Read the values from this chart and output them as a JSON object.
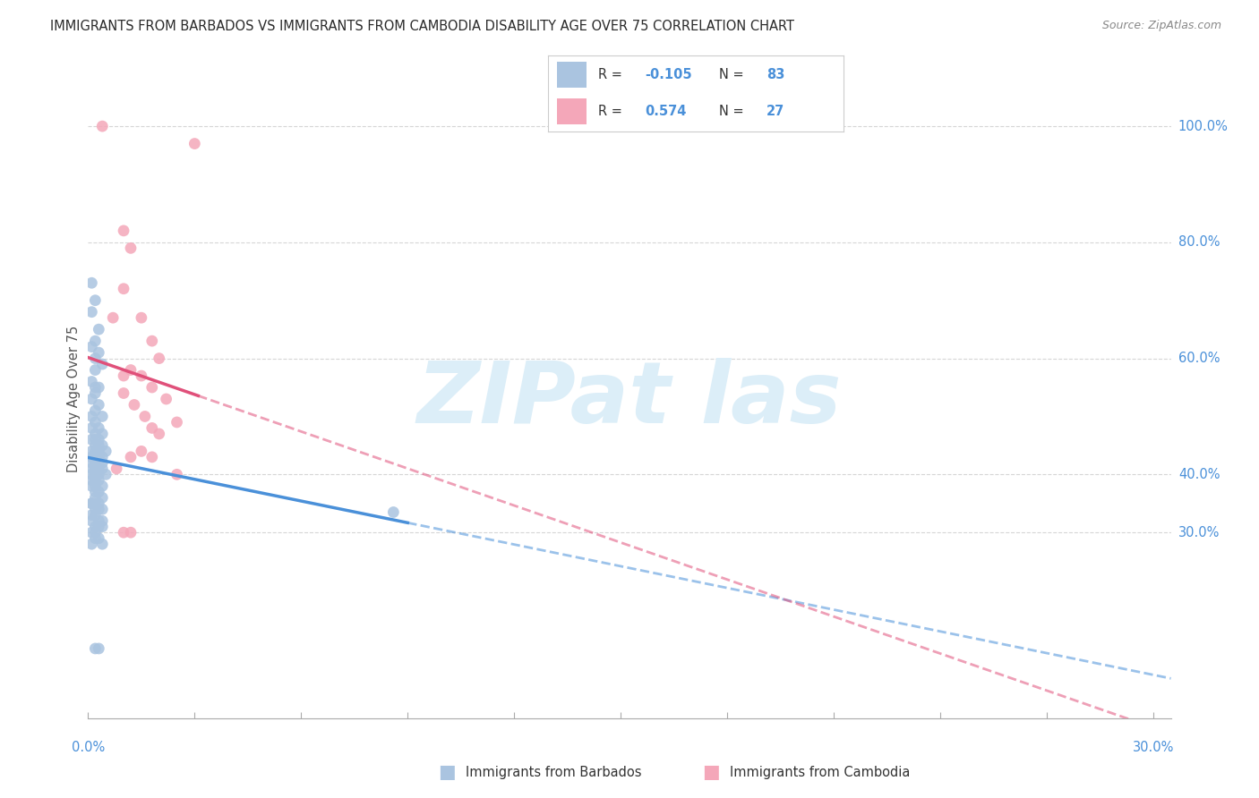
{
  "title": "IMMIGRANTS FROM BARBADOS VS IMMIGRANTS FROM CAMBODIA DISABILITY AGE OVER 75 CORRELATION CHART",
  "source": "Source: ZipAtlas.com",
  "ylabel": "Disability Age Over 75",
  "R1": "-0.105",
  "N1": "83",
  "R2": "0.574",
  "N2": "27",
  "color_barbados": "#aac4e0",
  "color_cambodia": "#f4a7b9",
  "trendline_barbados": "#4a90d9",
  "trendline_cambodia": "#e0507a",
  "background_color": "#ffffff",
  "grid_color": "#cccccc",
  "watermark_color": "#dceef8",
  "title_color": "#2a2a2a",
  "source_color": "#888888",
  "axis_tick_color": "#4a90d9",
  "legend_label1": "Immigrants from Barbados",
  "legend_label2": "Immigrants from Cambodia",
  "xlim": [
    0.0,
    0.305
  ],
  "ylim": [
    -0.02,
    1.08
  ],
  "y_tick_values": [
    1.0,
    0.8,
    0.6,
    0.4,
    0.3
  ],
  "y_tick_labels": [
    "100.0%",
    "80.0%",
    "60.0%",
    "40.0%",
    "30.0%"
  ],
  "barbados_x": [
    0.001,
    0.002,
    0.001,
    0.003,
    0.002,
    0.001,
    0.003,
    0.002,
    0.004,
    0.002,
    0.001,
    0.002,
    0.003,
    0.002,
    0.001,
    0.003,
    0.002,
    0.004,
    0.001,
    0.002,
    0.003,
    0.001,
    0.002,
    0.004,
    0.003,
    0.002,
    0.001,
    0.003,
    0.002,
    0.004,
    0.005,
    0.003,
    0.002,
    0.001,
    0.004,
    0.002,
    0.003,
    0.001,
    0.002,
    0.004,
    0.001,
    0.003,
    0.002,
    0.001,
    0.004,
    0.003,
    0.002,
    0.001,
    0.005,
    0.002,
    0.001,
    0.003,
    0.002,
    0.004,
    0.001,
    0.002,
    0.003,
    0.004,
    0.002,
    0.001,
    0.003,
    0.002,
    0.001,
    0.004,
    0.002,
    0.003,
    0.001,
    0.002,
    0.004,
    0.003,
    0.001,
    0.002,
    0.003,
    0.004,
    0.002,
    0.001,
    0.003,
    0.002,
    0.004,
    0.001,
    0.002,
    0.003,
    0.086
  ],
  "barbados_y": [
    0.73,
    0.7,
    0.68,
    0.65,
    0.63,
    0.62,
    0.61,
    0.6,
    0.59,
    0.58,
    0.56,
    0.55,
    0.55,
    0.54,
    0.53,
    0.52,
    0.51,
    0.5,
    0.5,
    0.49,
    0.48,
    0.48,
    0.47,
    0.47,
    0.46,
    0.46,
    0.46,
    0.45,
    0.45,
    0.45,
    0.44,
    0.44,
    0.44,
    0.44,
    0.43,
    0.43,
    0.43,
    0.43,
    0.42,
    0.42,
    0.42,
    0.41,
    0.41,
    0.41,
    0.41,
    0.4,
    0.4,
    0.4,
    0.4,
    0.39,
    0.39,
    0.39,
    0.38,
    0.38,
    0.38,
    0.37,
    0.37,
    0.36,
    0.36,
    0.35,
    0.35,
    0.35,
    0.35,
    0.34,
    0.34,
    0.34,
    0.33,
    0.33,
    0.32,
    0.32,
    0.32,
    0.31,
    0.31,
    0.31,
    0.3,
    0.3,
    0.29,
    0.29,
    0.28,
    0.28,
    0.1,
    0.1,
    0.335
  ],
  "cambodia_x": [
    0.004,
    0.01,
    0.012,
    0.01,
    0.015,
    0.018,
    0.02,
    0.012,
    0.015,
    0.018,
    0.01,
    0.022,
    0.013,
    0.016,
    0.025,
    0.018,
    0.02,
    0.015,
    0.012,
    0.018,
    0.008,
    0.025,
    0.03,
    0.01,
    0.012,
    0.007,
    0.01
  ],
  "cambodia_y": [
    1.0,
    0.82,
    0.79,
    0.72,
    0.67,
    0.63,
    0.6,
    0.58,
    0.57,
    0.55,
    0.54,
    0.53,
    0.52,
    0.5,
    0.49,
    0.48,
    0.47,
    0.44,
    0.43,
    0.43,
    0.41,
    0.4,
    0.97,
    0.3,
    0.3,
    0.67,
    0.57
  ]
}
